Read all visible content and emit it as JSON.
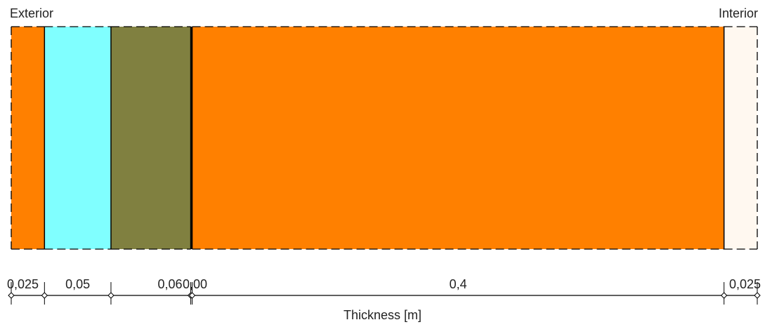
{
  "labels": {
    "exterior": "Exterior",
    "interior": "Interior",
    "axis_title": "Thickness [m]"
  },
  "layers": [
    {
      "thickness": 0.025,
      "label": "0,025",
      "color": "#FF8000",
      "outline": "dashed"
    },
    {
      "thickness": 0.05,
      "label": "0,05",
      "color": "#80FFFF",
      "outline": "dashed"
    },
    {
      "thickness": 0.06,
      "label": "0,06",
      "color": "#808040",
      "outline": "dashed"
    },
    {
      "thickness": 0.001,
      "label": "0,00",
      "color": "#000000",
      "outline": "solid"
    },
    {
      "thickness": 0.4,
      "label": "0,4",
      "color": "#FF8000",
      "outline": "dashed"
    },
    {
      "thickness": 0.025,
      "label": "0,025",
      "color": "#FFF8F0",
      "outline": "dashed"
    }
  ]
}
